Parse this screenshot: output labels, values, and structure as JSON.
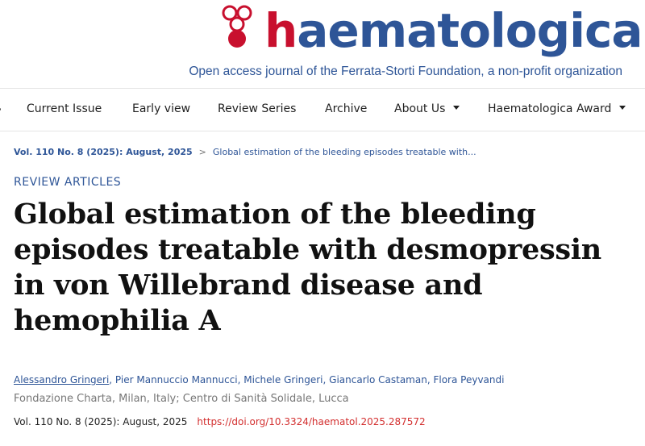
{
  "brand": {
    "name_first": "h",
    "name_rest": "aematologica",
    "tagline": "Open access journal of the Ferrata-Storti Foundation, a non-profit organization",
    "colors": {
      "red": "#c8102e",
      "blue": "#2e5597"
    },
    "logo_icon": "drop-circles-logo"
  },
  "nav": {
    "items": [
      {
        "label": "Current Issue"
      },
      {
        "label": "Early view"
      },
      {
        "label": "Review Series"
      },
      {
        "label": "Archive"
      },
      {
        "label": "About Us",
        "has_dropdown": true
      },
      {
        "label": "Haematologica Award",
        "has_dropdown": true
      }
    ]
  },
  "breadcrumb": {
    "issue": "Vol. 110 No. 8 (2025): August, 2025",
    "separator": ">",
    "current": "Global estimation of the bleeding episodes treatable with..."
  },
  "article": {
    "section": "REVIEW ARTICLES",
    "title": "Global estimation of the bleeding episodes treatable with desmopressin in von Willebrand disease and hemophilia A",
    "authors": [
      "Alessandro Gringeri",
      "Pier Mannuccio Mannucci",
      "Michele Gringeri",
      "Giancarlo Castaman",
      "Flora Peyvandi"
    ],
    "affiliation": "Fondazione Charta, Milan, Italy; Centro di Sanità Solidale, Lucca",
    "volume_info": "Vol. 110 No. 8 (2025): August, 2025",
    "doi": "https://doi.org/10.3324/haematol.2025.287572"
  }
}
